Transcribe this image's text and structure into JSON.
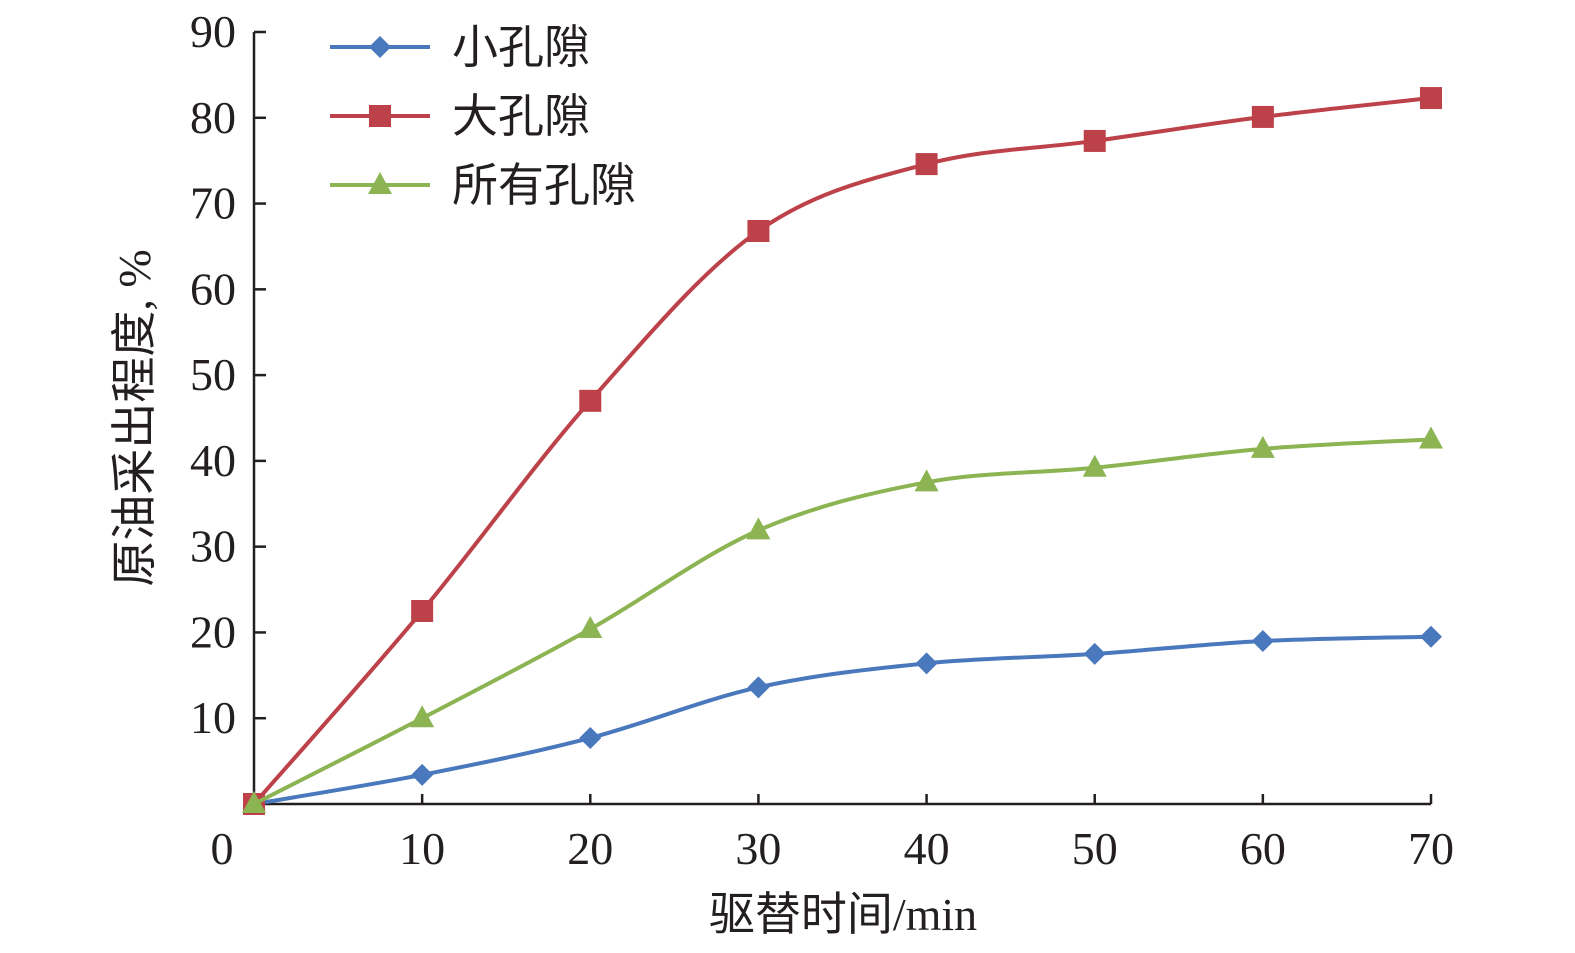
{
  "chart_data": {
    "type": "line",
    "title": "",
    "xlabel": "驱替时间/min",
    "ylabel": "原油采出程度, %",
    "xlim": [
      0,
      70
    ],
    "ylim": [
      0,
      90
    ],
    "x_ticks": [
      0,
      10,
      20,
      30,
      40,
      50,
      60,
      70
    ],
    "y_ticks": [
      10,
      20,
      30,
      40,
      50,
      60,
      70,
      80,
      90
    ],
    "grid": false,
    "legend_position": "top-left",
    "x": [
      0,
      10,
      20,
      30,
      40,
      50,
      60,
      70
    ],
    "series": [
      {
        "name": "小孔隙",
        "color": "#4a78bd",
        "marker": "diamond",
        "values": [
          0,
          3.4,
          7.7,
          13.6,
          16.4,
          17.5,
          19.0,
          19.5
        ]
      },
      {
        "name": "大孔隙",
        "color": "#bd4149",
        "marker": "square",
        "values": [
          0,
          22.5,
          47.0,
          66.8,
          74.6,
          77.3,
          80.1,
          82.3
        ]
      },
      {
        "name": "所有孔隙",
        "color": "#8cb452",
        "marker": "triangle",
        "values": [
          0,
          10.0,
          20.4,
          31.9,
          37.5,
          39.2,
          41.4,
          42.5
        ]
      }
    ]
  }
}
